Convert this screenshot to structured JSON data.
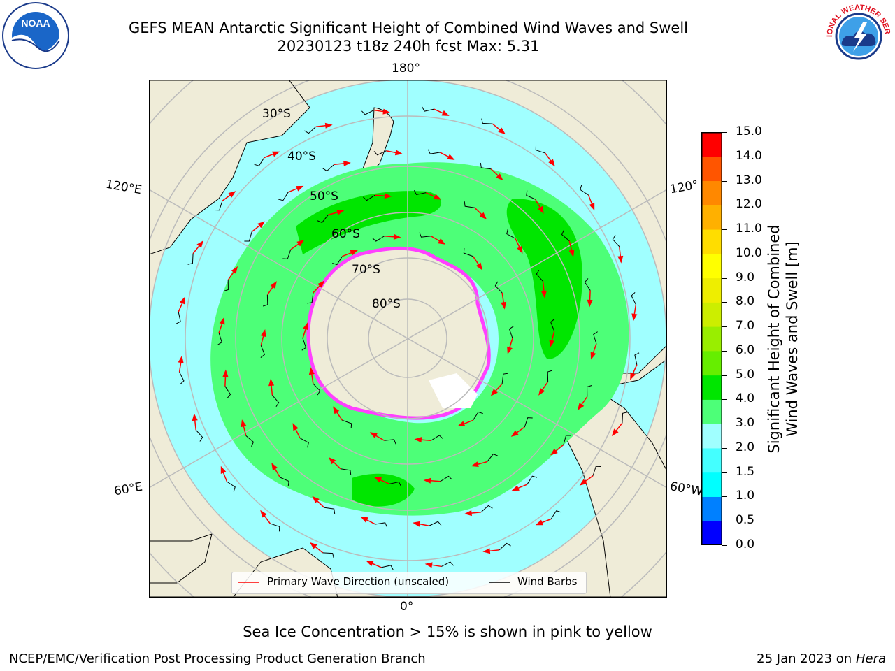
{
  "title": {
    "line1": "GEFS MEAN Antarctic Significant Height of Combined Wind Waves and Swell",
    "line2": "20230123 t18z 240h fcst   Max: 5.31"
  },
  "map": {
    "projection": "south-polar-stereographic",
    "longitude_labels": {
      "top": "180°",
      "bottom": "0°",
      "left_upper": "120°E",
      "left_lower": "60°E",
      "right_upper": "120°",
      "right_lower": "60°W"
    },
    "latitude_labels": [
      "30°S",
      "40°S",
      "50°S",
      "60°S",
      "70°S",
      "80°S"
    ],
    "colors": {
      "land": "#efecd8",
      "ocean_low": "#a0ffff",
      "wave_3_4": "#4dff78",
      "wave_4_5": "#00e600",
      "sea_ice": "#ff40ff",
      "arrow": "#ff0000",
      "barb": "#000000",
      "graticule": "#bbbbbb"
    }
  },
  "legend": {
    "primary_wave": "Primary Wave Direction (unscaled)",
    "wind_barbs": "Wind Barbs"
  },
  "colorbar": {
    "label_line1": "Significant Height of Combined",
    "label_line2": "Wind Waves and Swell [m]",
    "ticks": [
      "15.0",
      "14.0",
      "13.0",
      "12.0",
      "11.0",
      "10.0",
      "9.0",
      "8.0",
      "7.0",
      "6.0",
      "5.0",
      "4.0",
      "3.0",
      "2.0",
      "1.5",
      "1.0",
      "0.5",
      "0.0"
    ],
    "colors_bottom_to_top": [
      "#0000ff",
      "#0080ff",
      "#00ffff",
      "#44ffff",
      "#a0ffff",
      "#4dff78",
      "#00e600",
      "#66ee00",
      "#99ee00",
      "#ccee00",
      "#eeee00",
      "#ffff00",
      "#ffdd00",
      "#ffb000",
      "#ff8800",
      "#ff5500",
      "#ff0000"
    ]
  },
  "caption": "Sea Ice Concentration > 15% is shown in pink to yellow",
  "footer": {
    "left": "NCEP/EMC/Verification Post Processing Product Generation Branch",
    "right_date": "25 Jan 2023 on ",
    "right_host": "Hera"
  },
  "logos": {
    "noaa_text": "NOAA",
    "nws_text": "NATIONAL WEATHER SERVICE"
  }
}
